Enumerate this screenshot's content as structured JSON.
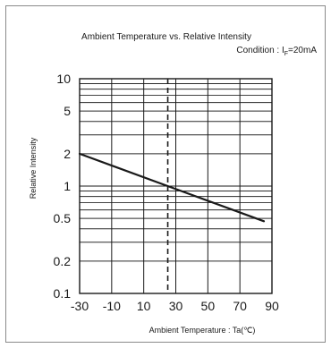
{
  "chart_data": {
    "type": "line",
    "title": "Ambient Temperature vs. Relative Intensity",
    "subtitle_prefix": "Condition : I",
    "subtitle_sub": "F",
    "subtitle_suffix": "=20mA",
    "xlabel": "Ambient Temperature : Ta(℃)",
    "ylabel": "Relative Intensity",
    "xlim": [
      -30,
      90
    ],
    "ylim": [
      0.1,
      10
    ],
    "yscale": "log",
    "xticks": [
      -30,
      -10,
      10,
      30,
      50,
      70,
      90
    ],
    "xtick_labels": [
      "-30",
      "-10",
      "10",
      "30",
      "50",
      "70",
      "90"
    ],
    "yticks": [
      10,
      5,
      2,
      1,
      0.5,
      0.2,
      0.1
    ],
    "ytick_labels": [
      "10",
      "5",
      "2",
      "1",
      "0.5",
      "0.2",
      "0.1"
    ],
    "reference_x": 25,
    "grid": true,
    "series": [
      {
        "x": [
          -30,
          25,
          85
        ],
        "y": [
          2.0,
          1.0,
          0.47
        ]
      }
    ]
  }
}
